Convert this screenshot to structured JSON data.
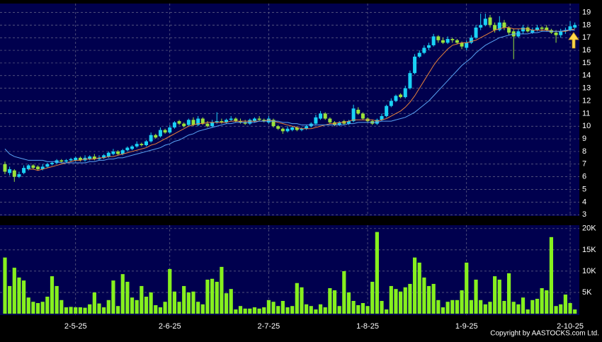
{
  "chart_data": [
    {
      "type": "candlestick",
      "xlim": [
        -1.05,
        121.95
      ],
      "ylim": [
        2.9,
        19.7
      ],
      "yticks": [
        3,
        4,
        5,
        6,
        7,
        8,
        9,
        10,
        11,
        12,
        13,
        14,
        15,
        16,
        17,
        18,
        19
      ],
      "grid": true,
      "up_color": "#1ad2f5",
      "down_color": "#9be23a",
      "open": [
        7.0,
        6.3,
        6.5,
        6.0,
        6.3,
        6.6,
        6.9,
        6.8,
        6.6,
        6.8,
        7.0,
        7.1,
        7.3,
        7.2,
        7.3,
        7.3,
        7.5,
        7.3,
        7.4,
        7.6,
        7.4,
        7.5,
        7.6,
        7.8,
        8.0,
        7.8,
        8.1,
        8.2,
        8.4,
        8.6,
        8.5,
        8.8,
        9.3,
        9.2,
        9.7,
        9.5,
        9.9,
        10.4,
        10.2,
        10.1,
        10.5,
        10.1,
        10.6,
        10.2,
        10.0,
        10.3,
        10.4,
        10.3,
        10.5,
        10.6,
        10.4,
        10.3,
        10.2,
        10.4,
        10.6,
        10.5,
        10.3,
        10.5,
        10.0,
        9.8,
        9.6,
        9.7,
        9.9,
        9.7,
        9.8,
        10.0,
        10.2,
        10.6,
        11.0,
        10.6,
        10.3,
        10.1,
        10.4,
        10.2,
        10.4,
        11.3,
        11.0,
        10.6,
        10.4,
        10.2,
        10.5,
        10.8,
        11.6,
        12.0,
        12.5,
        12.3,
        13.0,
        14.2,
        15.5,
        15.8,
        16.2,
        16.4,
        17.1,
        16.8,
        16.6,
        16.9,
        16.8,
        16.6,
        16.2,
        16.6,
        17.0,
        17.8,
        18.0,
        18.6,
        18.0,
        17.6,
        18.2,
        17.8,
        17.5,
        17.1,
        17.5,
        17.8,
        17.4,
        17.6,
        17.8,
        17.8,
        17.6,
        17.4,
        17.2,
        17.5,
        17.6,
        17.8
      ],
      "high": [
        7.2,
        6.8,
        6.6,
        6.4,
        6.9,
        7.0,
        7.0,
        6.9,
        7.0,
        7.1,
        7.2,
        7.4,
        7.4,
        7.4,
        7.5,
        7.6,
        7.6,
        7.7,
        7.7,
        7.8,
        7.7,
        7.8,
        8.0,
        8.2,
        8.1,
        8.2,
        8.4,
        8.5,
        8.8,
        8.7,
        8.9,
        9.5,
        9.4,
        9.9,
        9.8,
        10.1,
        10.4,
        10.5,
        10.3,
        10.6,
        10.7,
        10.8,
        10.7,
        10.4,
        10.5,
        11.1,
        10.6,
        10.6,
        10.8,
        10.7,
        10.6,
        10.5,
        10.6,
        10.7,
        10.8,
        10.6,
        10.8,
        10.6,
        10.1,
        9.9,
        10.0,
        10.0,
        10.0,
        9.9,
        10.1,
        10.3,
        10.9,
        11.2,
        11.1,
        10.7,
        10.4,
        10.4,
        10.5,
        10.5,
        11.7,
        11.5,
        11.1,
        10.7,
        10.5,
        10.6,
        11.0,
        11.7,
        12.2,
        12.5,
        12.6,
        13.2,
        14.4,
        15.7,
        16.0,
        16.4,
        16.6,
        17.3,
        17.2,
        17.0,
        17.1,
        17.0,
        16.9,
        16.7,
        16.8,
        17.2,
        18.0,
        18.9,
        18.9,
        18.8,
        18.2,
        18.7,
        18.4,
        17.9,
        17.7,
        17.7,
        18.0,
        17.9,
        17.8,
        18.0,
        17.9,
        18.0,
        17.7,
        17.6,
        17.7,
        17.8,
        18.3,
        18.2
      ],
      "low": [
        6.2,
        6.1,
        5.6,
        5.9,
        6.2,
        6.5,
        6.6,
        6.5,
        6.5,
        6.7,
        6.9,
        7.0,
        7.1,
        7.1,
        7.2,
        7.2,
        7.2,
        7.2,
        7.3,
        7.3,
        7.3,
        7.4,
        7.5,
        7.7,
        7.7,
        7.7,
        8.0,
        8.1,
        8.3,
        8.4,
        8.4,
        8.7,
        9.0,
        9.1,
        9.4,
        9.4,
        9.8,
        10.1,
        9.9,
        10.0,
        10.0,
        10.0,
        10.1,
        9.9,
        9.9,
        10.2,
        10.2,
        10.2,
        10.4,
        10.3,
        10.2,
        10.1,
        10.1,
        10.3,
        10.4,
        10.3,
        10.2,
        9.9,
        9.7,
        9.4,
        9.5,
        9.6,
        9.6,
        9.6,
        9.7,
        9.9,
        10.1,
        10.5,
        10.5,
        10.2,
        10.0,
        10.0,
        10.1,
        10.1,
        10.3,
        10.9,
        10.5,
        10.3,
        10.1,
        10.1,
        10.4,
        10.7,
        11.5,
        11.9,
        12.2,
        12.2,
        12.9,
        14.1,
        15.4,
        15.7,
        16.0,
        16.3,
        16.6,
        16.5,
        16.5,
        16.6,
        16.5,
        16.1,
        16.0,
        16.5,
        16.9,
        17.6,
        17.9,
        17.8,
        17.4,
        17.5,
        17.6,
        17.2,
        15.3,
        17.0,
        17.3,
        17.4,
        17.3,
        17.5,
        17.5,
        17.5,
        17.3,
        16.6,
        17.0,
        17.3,
        17.5,
        17.7
      ],
      "close": [
        6.4,
        6.6,
        6.0,
        6.2,
        6.7,
        6.9,
        6.7,
        6.6,
        6.8,
        7.0,
        7.1,
        7.3,
        7.2,
        7.3,
        7.4,
        7.5,
        7.3,
        7.5,
        7.6,
        7.4,
        7.5,
        7.7,
        7.9,
        8.0,
        7.8,
        8.1,
        8.3,
        8.4,
        8.6,
        8.5,
        8.8,
        9.3,
        9.1,
        9.7,
        9.5,
        9.9,
        10.3,
        10.2,
        10.0,
        10.5,
        10.1,
        10.6,
        10.2,
        10.0,
        10.3,
        10.4,
        10.3,
        10.5,
        10.6,
        10.4,
        10.3,
        10.2,
        10.5,
        10.6,
        10.5,
        10.4,
        10.6,
        10.0,
        9.8,
        9.6,
        9.8,
        9.9,
        9.7,
        9.8,
        10.0,
        10.2,
        10.7,
        11.0,
        10.6,
        10.3,
        10.1,
        10.3,
        10.2,
        10.4,
        11.4,
        11.0,
        10.6,
        10.4,
        10.2,
        10.5,
        10.8,
        11.6,
        12.0,
        12.4,
        12.3,
        13.0,
        14.2,
        15.5,
        15.8,
        16.2,
        16.4,
        17.1,
        16.8,
        16.6,
        16.9,
        16.8,
        16.6,
        16.3,
        16.6,
        17.0,
        17.8,
        18.0,
        18.5,
        18.0,
        17.6,
        18.2,
        17.8,
        17.4,
        17.1,
        17.5,
        17.8,
        17.5,
        17.6,
        17.8,
        17.7,
        17.6,
        17.4,
        17.2,
        17.5,
        17.6,
        17.9,
        18.0
      ],
      "series": [
        {
          "color": "#e8823a",
          "values": [
            null,
            null,
            null,
            null,
            null,
            6.6,
            6.6,
            6.5,
            6.6,
            6.7,
            6.8,
            6.9,
            7.0,
            7.1,
            7.2,
            7.3,
            7.3,
            7.4,
            7.4,
            7.4,
            7.5,
            7.5,
            7.6,
            7.6,
            7.7,
            7.8,
            7.9,
            8.0,
            8.1,
            8.2,
            8.3,
            8.5,
            8.6,
            8.8,
            9.0,
            9.2,
            9.4,
            9.6,
            9.8,
            10.0,
            10.1,
            10.2,
            10.2,
            10.3,
            10.3,
            10.3,
            10.3,
            10.3,
            10.4,
            10.4,
            10.4,
            10.4,
            10.4,
            10.4,
            10.4,
            10.4,
            10.5,
            10.4,
            10.3,
            10.2,
            10.1,
            10.0,
            9.9,
            9.8,
            9.8,
            9.8,
            9.9,
            10.0,
            10.1,
            10.2,
            10.2,
            10.3,
            10.3,
            10.4,
            10.5,
            10.5,
            10.5,
            10.5,
            10.5,
            10.4,
            10.5,
            10.6,
            10.8,
            11.0,
            11.2,
            11.5,
            11.9,
            12.4,
            13.0,
            13.6,
            14.2,
            14.8,
            15.3,
            15.7,
            16.1,
            16.4,
            16.5,
            16.6,
            16.6,
            16.7,
            16.8,
            17.0,
            17.2,
            17.4,
            17.6,
            17.7,
            17.8,
            17.8,
            17.7,
            17.7,
            17.7,
            17.7,
            17.6,
            17.6,
            17.6,
            17.6,
            17.5,
            17.5,
            17.5,
            17.5,
            17.6,
            17.7
          ]
        },
        {
          "color": "#5aa4f5",
          "values": [
            8.2,
            7.8,
            7.6,
            7.5,
            7.4,
            7.3,
            7.3,
            7.3,
            7.3,
            7.2,
            7.2,
            7.2,
            7.1,
            7.1,
            7.1,
            7.1,
            7.1,
            7.1,
            7.2,
            7.2,
            7.3,
            7.3,
            7.4,
            7.4,
            7.5,
            7.5,
            7.6,
            7.7,
            7.8,
            7.9,
            8.0,
            8.1,
            8.2,
            8.3,
            8.5,
            8.6,
            8.8,
            8.9,
            9.1,
            9.3,
            9.4,
            9.6,
            9.7,
            9.8,
            9.9,
            10.0,
            10.1,
            10.2,
            10.2,
            10.3,
            10.3,
            10.3,
            10.3,
            10.3,
            10.4,
            10.4,
            10.4,
            10.4,
            10.4,
            10.3,
            10.3,
            10.2,
            10.2,
            10.1,
            10.1,
            10.1,
            10.1,
            10.1,
            10.1,
            10.1,
            10.1,
            10.1,
            10.1,
            10.2,
            10.2,
            10.3,
            10.3,
            10.3,
            10.3,
            10.3,
            10.4,
            10.4,
            10.4,
            10.5,
            10.6,
            10.7,
            10.9,
            11.1,
            11.4,
            11.7,
            12.0,
            12.4,
            12.8,
            13.2,
            13.6,
            14.0,
            14.4,
            14.8,
            15.1,
            15.4,
            15.8,
            16.1,
            16.4,
            16.6,
            16.8,
            17.0,
            17.1,
            17.2,
            17.3,
            17.3,
            17.3,
            17.3,
            17.4,
            17.4,
            17.5,
            17.5,
            17.5,
            17.5,
            17.5,
            17.6,
            17.6,
            17.6
          ]
        }
      ]
    },
    {
      "type": "bar",
      "xlim": [
        -1.05,
        121.95
      ],
      "ylim": [
        -330,
        20800
      ],
      "color": "#86f01e",
      "grid": true,
      "yticks": [
        {
          "value": 5000,
          "label": "5K"
        },
        {
          "value": 10000,
          "label": "10K"
        },
        {
          "value": 15000,
          "label": "15K"
        },
        {
          "value": 20000,
          "label": "20K"
        }
      ],
      "xticks": [
        {
          "value": 15,
          "label": "2-5-25"
        },
        {
          "value": 35,
          "label": "2-6-25"
        },
        {
          "value": 56,
          "label": "2-7-25"
        },
        {
          "value": 77,
          "label": "1-8-25"
        },
        {
          "value": 98,
          "label": "1-9-25"
        },
        {
          "value": 120,
          "label": "2-10-25"
        }
      ],
      "values": [
        13200,
        6500,
        10800,
        8500,
        7800,
        3800,
        2800,
        2500,
        2800,
        4000,
        8800,
        6500,
        3200,
        1500,
        1600,
        1500,
        1500,
        1400,
        2200,
        5000,
        2400,
        1500,
        3200,
        7800,
        1800,
        9300,
        7500,
        3800,
        3200,
        6500,
        4000,
        5000,
        2000,
        1500,
        2800,
        10500,
        5200,
        2800,
        6500,
        5000,
        5200,
        2800,
        2200,
        8000,
        8200,
        7500,
        11000,
        4800,
        5800,
        1000,
        1800,
        1200,
        1200,
        1500,
        1200,
        1500,
        3200,
        2800,
        1800,
        3000,
        1500,
        1800,
        7200,
        6200,
        2200,
        1800,
        1000,
        2200,
        1500,
        6000,
        5500,
        1800,
        10000,
        5000,
        3000,
        2000,
        2500,
        1800,
        7500,
        19200,
        3000,
        1000,
        6500,
        5800,
        5200,
        6200,
        7000,
        13200,
        12000,
        8500,
        6500,
        7000,
        3200,
        1500,
        2800,
        3200,
        3200,
        5500,
        12000,
        3200,
        8000,
        3200,
        2200,
        2800,
        8800,
        8000,
        3000,
        9500,
        2800,
        2200,
        3800,
        1000,
        3200,
        3500,
        6000,
        5500,
        18000,
        1800,
        2200,
        4500,
        2500,
        1000
      ]
    },
    {
      "copyright": "Copyright by AASTOCKS.com Ltd."
    }
  ]
}
